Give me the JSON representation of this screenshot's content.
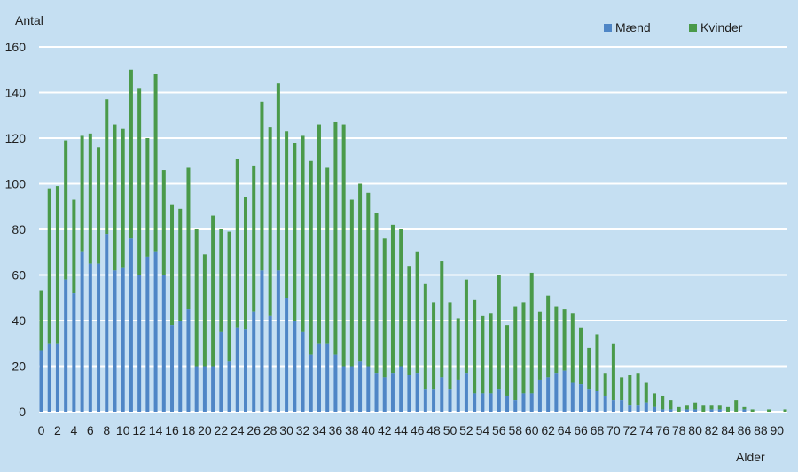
{
  "chart_data": {
    "type": "bar",
    "stacked": true,
    "ylabel": "Antal",
    "xlabel": "Alder",
    "ylim": [
      0,
      160
    ],
    "yticks": [
      0,
      20,
      40,
      60,
      80,
      100,
      120,
      140,
      160
    ],
    "grid": true,
    "legend_position": "top-right",
    "x": [
      0,
      1,
      2,
      3,
      4,
      5,
      6,
      7,
      8,
      9,
      10,
      11,
      12,
      13,
      14,
      15,
      16,
      17,
      18,
      19,
      20,
      21,
      22,
      23,
      24,
      25,
      26,
      27,
      28,
      29,
      30,
      31,
      32,
      33,
      34,
      35,
      36,
      37,
      38,
      39,
      40,
      41,
      42,
      43,
      44,
      45,
      46,
      47,
      48,
      49,
      50,
      51,
      52,
      53,
      54,
      55,
      56,
      57,
      58,
      59,
      60,
      61,
      62,
      63,
      64,
      65,
      66,
      67,
      68,
      69,
      70,
      71,
      72,
      73,
      74,
      75,
      76,
      77,
      78,
      79,
      80,
      81,
      82,
      83,
      84,
      85,
      86,
      87,
      88,
      89,
      90,
      91
    ],
    "xticks": [
      "0",
      "2",
      "4",
      "6",
      "8",
      "10",
      "12",
      "14",
      "16",
      "18",
      "20",
      "22",
      "24",
      "26",
      "28",
      "30",
      "32",
      "34",
      "36",
      "38",
      "40",
      "42",
      "44",
      "46",
      "48",
      "50",
      "52",
      "54",
      "56",
      "58",
      "60",
      "62",
      "64",
      "66",
      "68",
      "70",
      "72",
      "74",
      "76",
      "78",
      "80",
      "82",
      "84",
      "86",
      "88",
      "90"
    ],
    "series": [
      {
        "name": "Mænd",
        "color": "#4f86c6",
        "values": [
          27,
          30,
          30,
          58,
          52,
          70,
          65,
          65,
          78,
          62,
          63,
          76,
          60,
          68,
          70,
          60,
          38,
          40,
          45,
          20,
          20,
          20,
          35,
          22,
          37,
          36,
          44,
          62,
          42,
          62,
          50,
          40,
          35,
          25,
          30,
          30,
          25,
          20,
          20,
          22,
          20,
          17,
          15,
          17,
          20,
          16,
          17,
          10,
          10,
          15,
          10,
          14,
          17,
          8,
          8,
          8,
          10,
          7,
          5,
          8,
          8,
          14,
          15,
          17,
          18,
          13,
          12,
          10,
          9,
          7,
          5,
          5,
          3,
          3,
          4,
          2,
          1,
          1,
          0,
          1,
          1,
          0,
          1,
          1,
          0,
          0,
          1,
          0,
          0,
          0,
          0,
          0
        ],
        "note": "bottom segment"
      },
      {
        "name": "Kvinder",
        "color": "#4a9a4a",
        "totals": [
          53,
          98,
          99,
          119,
          93,
          121,
          122,
          116,
          137,
          126,
          124,
          150,
          142,
          120,
          148,
          106,
          91,
          89,
          107,
          80,
          69,
          86,
          80,
          79,
          111,
          94,
          108,
          136,
          125,
          144,
          123,
          118,
          121,
          110,
          126,
          107,
          127,
          126,
          93,
          100,
          96,
          87,
          76,
          82,
          80,
          64,
          70,
          56,
          48,
          66,
          48,
          41,
          58,
          49,
          42,
          43,
          60,
          38,
          46,
          48,
          61,
          44,
          51,
          46,
          45,
          43,
          37,
          28,
          34,
          17,
          30,
          15,
          16,
          17,
          13,
          8,
          7,
          5,
          2,
          3,
          4,
          3,
          3,
          3,
          2,
          5,
          2,
          1,
          0,
          1,
          0,
          1
        ]
      }
    ]
  },
  "legend": {
    "items": [
      {
        "label": "Mænd",
        "color": "#4f86c6"
      },
      {
        "label": "Kvinder",
        "color": "#4a9a4a"
      }
    ]
  }
}
